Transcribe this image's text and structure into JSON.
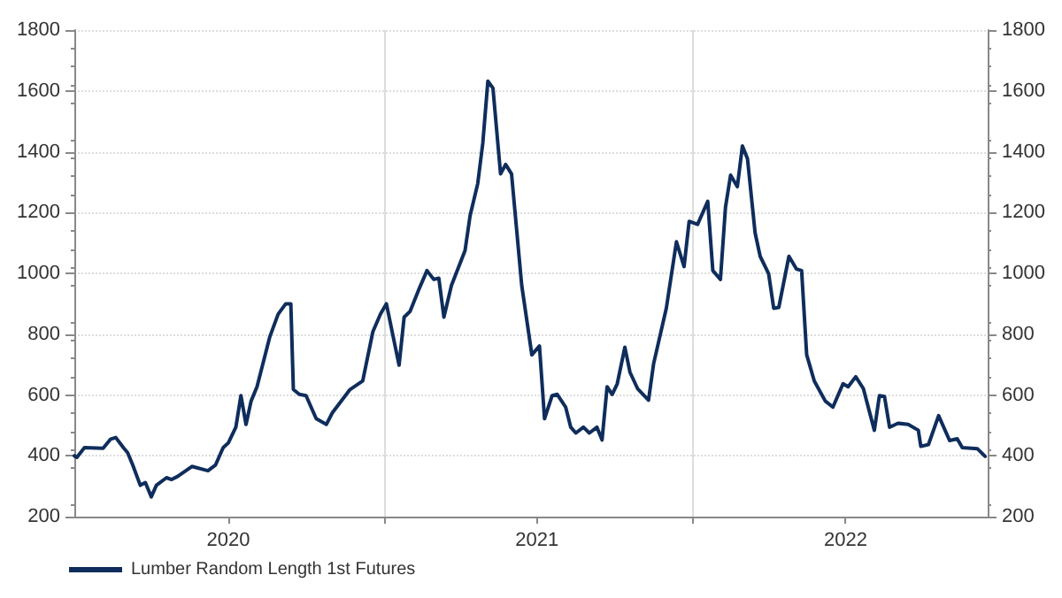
{
  "chart_data": {
    "type": "line",
    "xlim": [
      "2020-01-01",
      "2022-12-16"
    ],
    "xticks": [
      {
        "value": "2020-07-01",
        "label": "2020"
      },
      {
        "value": "2021-01-01",
        "label": null
      },
      {
        "value": "2021-07-01",
        "label": "2021"
      },
      {
        "value": "2022-01-01",
        "label": null
      },
      {
        "value": "2022-07-01",
        "label": "2022"
      }
    ],
    "ylim": [
      200,
      1800
    ],
    "yticks": [
      200,
      400,
      600,
      800,
      1000,
      1200,
      1400,
      1600,
      1800
    ],
    "y2lim": [
      200,
      1800
    ],
    "y2ticks": [
      200,
      400,
      600,
      800,
      1000,
      1200,
      1400,
      1600,
      1800
    ],
    "grid": true,
    "legend": "bottom left",
    "marker": "none",
    "line_style": "solid",
    "series": [
      {
        "name": "Lumber Random Length 1st Futures",
        "color": "#0f2d5c",
        "x": [
          "2020-01-01",
          "2020-01-04",
          "2020-01-13",
          "2020-02-04",
          "2020-02-13",
          "2020-02-19",
          "2020-02-28",
          "2020-03-04",
          "2020-03-10",
          "2020-03-19",
          "2020-03-25",
          "2020-04-01",
          "2020-04-07",
          "2020-04-19",
          "2020-04-25",
          "2020-05-02",
          "2020-05-19",
          "2020-06-07",
          "2020-06-16",
          "2020-06-25",
          "2020-07-01",
          "2020-07-10",
          "2020-07-16",
          "2020-07-22",
          "2020-07-28",
          "2020-08-04",
          "2020-08-19",
          "2020-08-29",
          "2020-09-07",
          "2020-09-13",
          "2020-09-16",
          "2020-09-23",
          "2020-10-01",
          "2020-10-13",
          "2020-10-25",
          "2020-11-01",
          "2020-11-22",
          "2020-12-07",
          "2020-12-19",
          "2020-12-28",
          "2021-01-04",
          "2021-01-19",
          "2021-01-25",
          "2021-02-01",
          "2021-02-12",
          "2021-02-21",
          "2021-03-01",
          "2021-03-07",
          "2021-03-13",
          "2021-03-22",
          "2021-04-07",
          "2021-04-13",
          "2021-04-22",
          "2021-04-28",
          "2021-05-04",
          "2021-05-10",
          "2021-05-19",
          "2021-05-25",
          "2021-06-01",
          "2021-06-13",
          "2021-06-25",
          "2021-07-04",
          "2021-07-10",
          "2021-07-19",
          "2021-07-25",
          "2021-08-04",
          "2021-08-10",
          "2021-08-16",
          "2021-08-25",
          "2021-09-01",
          "2021-09-10",
          "2021-09-16",
          "2021-09-22",
          "2021-09-28",
          "2021-10-04",
          "2021-10-13",
          "2021-10-19",
          "2021-10-28",
          "2021-11-10",
          "2021-11-16",
          "2021-12-01",
          "2021-12-13",
          "2021-12-22",
          "2021-12-28",
          "2022-01-07",
          "2022-01-19",
          "2022-01-25",
          "2022-02-03",
          "2022-02-09",
          "2022-02-15",
          "2022-02-23",
          "2022-03-01",
          "2022-03-07",
          "2022-03-16",
          "2022-03-22",
          "2022-04-01",
          "2022-04-07",
          "2022-04-13",
          "2022-04-25",
          "2022-05-04",
          "2022-05-10",
          "2022-05-16",
          "2022-05-25",
          "2022-06-07",
          "2022-06-16",
          "2022-06-28",
          "2022-07-04",
          "2022-07-13",
          "2022-07-22",
          "2022-08-04",
          "2022-08-10",
          "2022-08-16",
          "2022-08-22",
          "2022-09-01",
          "2022-09-13",
          "2022-09-25",
          "2022-09-28",
          "2022-10-07",
          "2022-10-19",
          "2022-11-01",
          "2022-11-10",
          "2022-11-16",
          "2022-12-04",
          "2022-12-13"
        ],
        "values": [
          400,
          395,
          427,
          425,
          455,
          460,
          427,
          410,
          370,
          303,
          312,
          265,
          303,
          328,
          322,
          332,
          365,
          351,
          370,
          427,
          442,
          494,
          598,
          503,
          580,
          627,
          790,
          866,
          900,
          900,
          618,
          602,
          598,
          522,
          503,
          541,
          618,
          646,
          808,
          866,
          900,
          698,
          856,
          875,
          951,
          1009,
          980,
          984,
          856,
          961,
          1075,
          1190,
          1295,
          1428,
          1632,
          1609,
          1327,
          1358,
          1327,
          961,
          732,
          761,
          522,
          598,
          602,
          560,
          494,
          475,
          494,
          475,
          494,
          452,
          627,
          602,
          637,
          757,
          675,
          621,
          583,
          703,
          885,
          1104,
          1022,
          1171,
          1161,
          1237,
          1009,
          980,
          1218,
          1323,
          1285,
          1419,
          1377,
          1133,
          1056,
          999,
          885,
          888,
          1056,
          1014,
          1009,
          732,
          646,
          580,
          560,
          637,
          627,
          660,
          621,
          484,
          598,
          595,
          494,
          507,
          503,
          484,
          431,
          437,
          532,
          450,
          456,
          427,
          423,
          398
        ]
      }
    ]
  }
}
